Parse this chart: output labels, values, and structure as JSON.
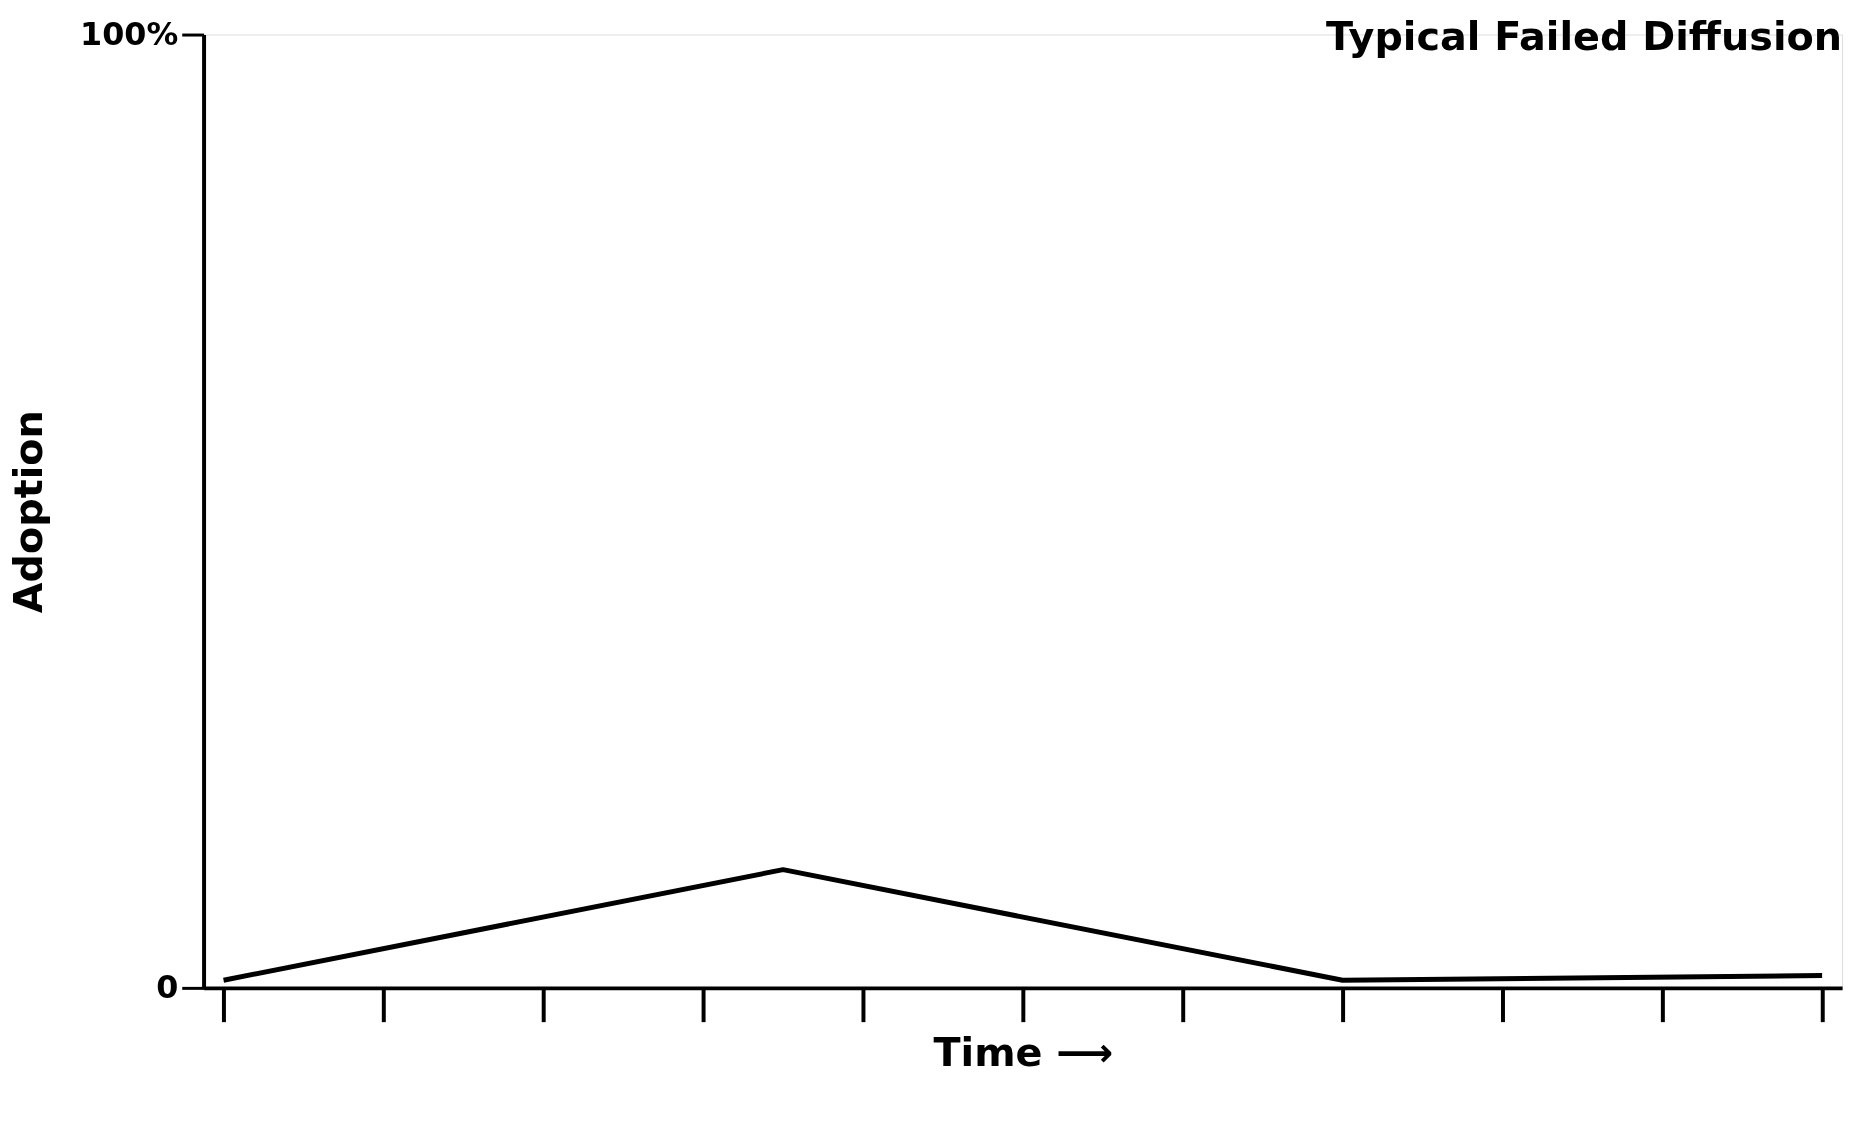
{
  "chart_data": {
    "type": "line",
    "title": "Typical Failed Diffusion",
    "xlabel": "Time ⟶",
    "ylabel": "Adoption",
    "categories": [
      null,
      null,
      null,
      null,
      null,
      null,
      null,
      null,
      null,
      null,
      null,
      null,
      null,
      null,
      null,
      null,
      null,
      null,
      null,
      null,
      null,
      null,
      null,
      null,
      null,
      null,
      null,
      null,
      null,
      null,
      null,
      null,
      null,
      null,
      null,
      null,
      null,
      null,
      null,
      null,
      null
    ],
    "series": [
      {
        "color": "#000000",
        "values": [
          0.8,
          null,
          null,
          null,
          null,
          null,
          null,
          null,
          null,
          null,
          null,
          null,
          null,
          null,
          12.4,
          null,
          null,
          null,
          null,
          null,
          null,
          null,
          null,
          null,
          null,
          null,
          null,
          null,
          0.8,
          null,
          null,
          null,
          null,
          null,
          null,
          null,
          null,
          null,
          null,
          null,
          1.3
        ]
      }
    ],
    "ylim": [
      0,
      100
    ],
    "yticks": [
      {
        "value": 0,
        "label": "0"
      },
      {
        "value": 100,
        "label": "100%"
      }
    ],
    "tick_labels": "y",
    "marker": "none",
    "line_style": "solid"
  }
}
